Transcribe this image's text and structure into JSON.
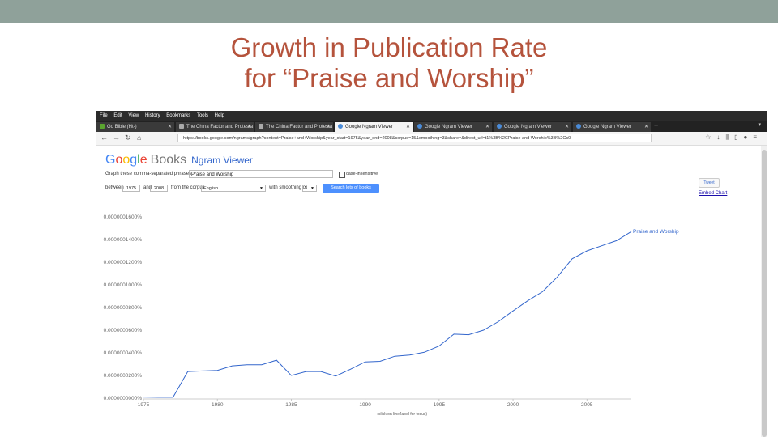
{
  "slide": {
    "title_line1": "Growth in Publication Rate",
    "title_line2": "for “Praise and Worship”",
    "title_color": "#b5533c",
    "topbar_color": "#8fa19a"
  },
  "browser": {
    "menu": [
      "File",
      "Edit",
      "View",
      "History",
      "Bookmarks",
      "Tools",
      "Help"
    ],
    "tabs": [
      {
        "label": "Go Bible (Ht-)",
        "icon": "green-favicon-icon",
        "active": false
      },
      {
        "label": "The China Factor and Protesta",
        "icon": "document-favicon-icon",
        "active": false
      },
      {
        "label": "The China Factor and Protesta",
        "icon": "document-favicon-icon",
        "active": false
      },
      {
        "label": "Google Ngram Viewer",
        "icon": "google-favicon-icon",
        "active": true
      },
      {
        "label": "Google Ngram Viewer",
        "icon": "google-favicon-icon",
        "active": false
      },
      {
        "label": "Google Ngram Viewer",
        "icon": "google-favicon-icon",
        "active": false
      },
      {
        "label": "Google Ngram Viewer",
        "icon": "google-favicon-icon",
        "active": false
      }
    ],
    "url": "https://books.google.com/ngrams/graph?content=Praise+and+Worship&year_start=1975&year_end=2008&corpus=15&smoothing=3&share=&direct_url=t1%3B%2CPraise and Worship%3B%2Cc0"
  },
  "ngram": {
    "logo_books": "Books",
    "logo_title": "Ngram Viewer",
    "graph_label": "Graph these comma-separated phrases:",
    "query": "Praise and Worship",
    "case_label": "case-insensitive",
    "between_label": "between",
    "year_start": "1975",
    "and_label": "and",
    "year_end": "2008",
    "corpus_label": "from the corpus",
    "corpus": "English",
    "smoothing_label": "with smoothing of",
    "smoothing": "3",
    "search_button": "Search lots of books",
    "tweet_label": "Tweet",
    "embed_label": "Embed Chart"
  },
  "chart_data": {
    "type": "line",
    "title": "",
    "xlabel": "(click on line/label for focus)",
    "ylabel": "",
    "x": [
      1975,
      1976,
      1977,
      1978,
      1979,
      1980,
      1981,
      1982,
      1983,
      1984,
      1985,
      1986,
      1987,
      1988,
      1989,
      1990,
      1991,
      1992,
      1993,
      1994,
      1995,
      1996,
      1997,
      1998,
      1999,
      2000,
      2001,
      2002,
      2003,
      2004,
      2005,
      2006,
      2007,
      2008
    ],
    "series": [
      {
        "name": "Praise and Worship",
        "color": "#3366cc",
        "values": [
          1e-09,
          8e-10,
          8e-10,
          2.35e-08,
          2.4e-08,
          2.45e-08,
          2.85e-08,
          2.95e-08,
          2.95e-08,
          3.35e-08,
          2e-08,
          2.35e-08,
          2.35e-08,
          1.95e-08,
          2.55e-08,
          3.2e-08,
          3.25e-08,
          3.7e-08,
          3.8e-08,
          4.05e-08,
          4.6e-08,
          5.65e-08,
          5.6e-08,
          6e-08,
          6.75e-08,
          7.7e-08,
          8.6e-08,
          9.4e-08,
          1.07e-07,
          1.23e-07,
          1.3e-07,
          1.345e-07,
          1.39e-07,
          1.47e-07
        ]
      }
    ],
    "y_ticks": [
      "0.0000000000%",
      "0.0000000200%",
      "0.0000000400%",
      "0.0000000600%",
      "0.0000000800%",
      "0.0000001000%",
      "0.0000001200%",
      "0.0000001400%",
      "0.0000001600%"
    ],
    "x_ticks": [
      "1975",
      "1980",
      "1985",
      "1990",
      "1995",
      "2000",
      "2005"
    ],
    "xlim": [
      1975,
      2008
    ],
    "ylim": [
      0,
      1.6e-07
    ],
    "grid": false
  }
}
